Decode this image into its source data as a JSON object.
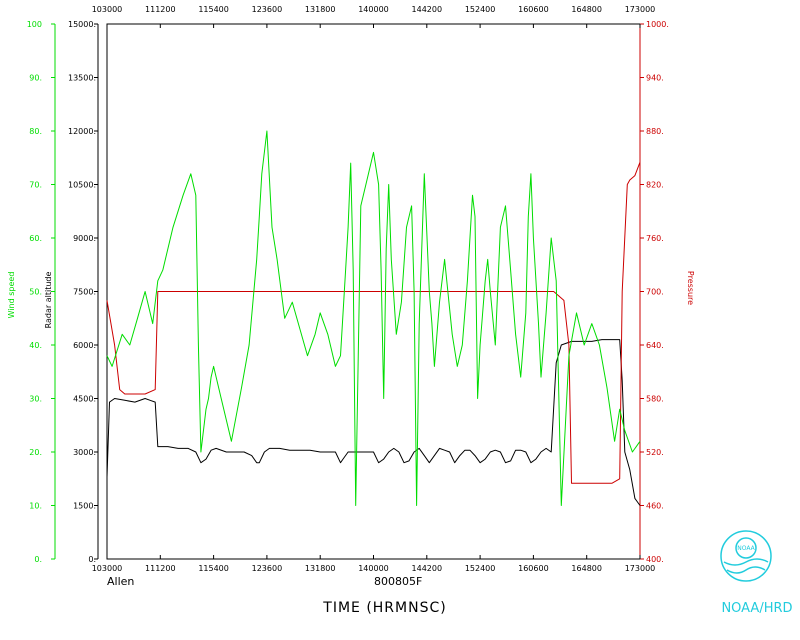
{
  "chart_data": {
    "type": "line",
    "xlabel": "TIME (HRMNSC)",
    "x_ticks": [
      "103000",
      "111200",
      "115400",
      "123600",
      "131800",
      "140000",
      "144200",
      "152400",
      "160600",
      "164800",
      "173000"
    ],
    "x_range_hrmnsc": [
      "103000",
      "173000"
    ],
    "left_outer_axis": {
      "label": "Wind speed",
      "ticks": [
        "0.",
        "10.",
        "20.",
        "30.",
        "40.",
        "50.",
        "60.",
        "70.",
        "80.",
        "90.",
        "100"
      ],
      "ylim": [
        0,
        100
      ],
      "color": "#00dd00"
    },
    "left_inner_axis": {
      "label": "Radar altitude",
      "ticks": [
        "0.",
        "1500.",
        "3000.",
        "4500.",
        "6000.",
        "7500.",
        "9000.",
        "10500.",
        "12000.",
        "13500.",
        "15000."
      ],
      "ylim": [
        0,
        15000
      ],
      "color": "#000000"
    },
    "right_axis": {
      "label": "Pressure",
      "ticks": [
        "400.",
        "460.",
        "520.",
        "580.",
        "640.",
        "700.",
        "760.",
        "820.",
        "880.",
        "940.",
        "1000."
      ],
      "ylim": [
        400,
        1000
      ],
      "color": "#cc0000"
    },
    "series": [
      {
        "name": "Wind speed",
        "axis": "left_outer",
        "color": "#00dd00",
        "x": [
          "103000",
          "103400",
          "104200",
          "104800",
          "105400",
          "110000",
          "110600",
          "111000",
          "111400",
          "112200",
          "113000",
          "113600",
          "114000",
          "114200",
          "114400",
          "114800",
          "115000",
          "115200",
          "115400",
          "120000",
          "120800",
          "121600",
          "122200",
          "122800",
          "123000",
          "123200",
          "123600",
          "124000",
          "124400",
          "125000",
          "125600",
          "130200",
          "130800",
          "131400",
          "131800",
          "132400",
          "133000",
          "133400",
          "133800",
          "134000",
          "134200",
          "134400",
          "134600",
          "135000",
          "135400",
          "140000",
          "140400",
          "140600",
          "140800",
          "141000",
          "141200",
          "141400",
          "141800",
          "142200",
          "142600",
          "143000",
          "143200",
          "143400",
          "143600",
          "144000",
          "144400",
          "144600",
          "144800",
          "145200",
          "145600",
          "150200",
          "150600",
          "151000",
          "151400",
          "151800",
          "152000",
          "152200",
          "152400",
          "152800",
          "153000",
          "153200",
          "153600",
          "154000",
          "154400",
          "154800",
          "155200",
          "155600",
          "160000",
          "160200",
          "160400",
          "160600",
          "161000",
          "161200",
          "161600",
          "162000",
          "162400",
          "162800",
          "163400",
          "164000",
          "164600",
          "165200",
          "165800",
          "170400",
          "171000",
          "171400",
          "171800",
          "172400",
          "173000"
        ],
        "y": [
          38,
          36,
          42,
          40,
          45,
          50,
          44,
          52,
          54,
          62,
          68,
          72,
          68,
          40,
          20,
          28,
          30,
          34,
          36,
          30,
          22,
          32,
          40,
          56,
          64,
          72,
          80,
          62,
          56,
          45,
          48,
          43,
          38,
          42,
          46,
          42,
          36,
          38,
          54,
          62,
          74,
          54,
          10,
          66,
          70,
          76,
          70,
          54,
          30,
          58,
          70,
          56,
          42,
          48,
          62,
          66,
          50,
          10,
          44,
          72,
          50,
          44,
          36,
          48,
          56,
          42,
          36,
          40,
          52,
          68,
          64,
          30,
          40,
          52,
          56,
          50,
          40,
          62,
          66,
          54,
          42,
          34,
          46,
          64,
          72,
          60,
          44,
          34,
          46,
          60,
          52,
          10,
          38,
          46,
          40,
          44,
          40,
          32,
          22,
          28,
          24,
          20,
          22
        ]
      },
      {
        "name": "Radar altitude",
        "axis": "left_inner",
        "color": "#000000",
        "x": [
          "103000",
          "103200",
          "103600",
          "104400",
          "105200",
          "110000",
          "110400",
          "110800",
          "111000",
          "111800",
          "112600",
          "113400",
          "114000",
          "114400",
          "114800",
          "115200",
          "115600",
          "120400",
          "121200",
          "121800",
          "122400",
          "122800",
          "123000",
          "123400",
          "123800",
          "124600",
          "125400",
          "130200",
          "131000",
          "131800",
          "132400",
          "133000",
          "133400",
          "133600",
          "134000",
          "134800",
          "135600",
          "140000",
          "140400",
          "140800",
          "141200",
          "141600",
          "142000",
          "142400",
          "142800",
          "143200",
          "143600",
          "144000",
          "144400",
          "144800",
          "145200",
          "145600",
          "150000",
          "150400",
          "150800",
          "151200",
          "151600",
          "152000",
          "152400",
          "152800",
          "153200",
          "153600",
          "154000",
          "154400",
          "154800",
          "155200",
          "155600",
          "160000",
          "160400",
          "160800",
          "161200",
          "161600",
          "162000",
          "162400",
          "162800",
          "163600",
          "164400",
          "165200",
          "170000",
          "170800",
          "171400",
          "171600",
          "171800",
          "172200",
          "172600",
          "173000"
        ],
        "y": [
          2300,
          4400,
          4500,
          4450,
          4400,
          4500,
          4450,
          4400,
          3150,
          3150,
          3100,
          3100,
          3000,
          2700,
          2800,
          3050,
          3100,
          3000,
          3000,
          3000,
          2900,
          2700,
          2700,
          3000,
          3100,
          3100,
          3050,
          3050,
          3050,
          3000,
          3000,
          3000,
          2700,
          2800,
          3000,
          3000,
          3000,
          3000,
          2700,
          2800,
          3000,
          3100,
          3000,
          2700,
          2750,
          3000,
          3100,
          2900,
          2700,
          2900,
          3100,
          3050,
          3000,
          2700,
          2900,
          3050,
          3050,
          2900,
          2700,
          2800,
          3000,
          3050,
          3000,
          2700,
          2750,
          3050,
          3050,
          3000,
          2700,
          2800,
          3000,
          3100,
          3000,
          5500,
          6000,
          6100,
          6100,
          6100,
          6150,
          6150,
          6150,
          5000,
          3000,
          2500,
          1700,
          1500
        ]
      },
      {
        "name": "Pressure",
        "axis": "right",
        "color": "#cc0000",
        "x": [
          "103000",
          "103600",
          "104000",
          "104400",
          "105200",
          "110000",
          "110800",
          "111000",
          "111200",
          "112000",
          "113000",
          "114000",
          "115000",
          "120000",
          "121000",
          "122000",
          "123000",
          "123800",
          "124600",
          "125400",
          "130200",
          "131000",
          "131800",
          "132600",
          "133400",
          "134200",
          "135000",
          "135800",
          "140600",
          "141400",
          "142200",
          "143000",
          "143800",
          "144600",
          "145400",
          "150200",
          "151000",
          "151800",
          "152600",
          "153400",
          "154200",
          "155000",
          "155800",
          "160600",
          "161400",
          "162200",
          "163000",
          "163400",
          "163600",
          "164400",
          "165200",
          "170000",
          "170800",
          "171400",
          "171600",
          "172000",
          "172200",
          "172600",
          "173000"
        ],
        "y": [
          690,
          640,
          590,
          585,
          585,
          585,
          590,
          700,
          700,
          700,
          700,
          700,
          700,
          700,
          700,
          700,
          700,
          700,
          700,
          700,
          700,
          700,
          700,
          700,
          700,
          700,
          700,
          700,
          700,
          700,
          700,
          700,
          700,
          700,
          700,
          700,
          700,
          700,
          700,
          700,
          700,
          700,
          700,
          700,
          700,
          700,
          690,
          640,
          485,
          485,
          485,
          485,
          485,
          490,
          700,
          820,
          825,
          830,
          845
        ]
      }
    ],
    "annotations": {
      "storm": "Allen",
      "flight_id": "800805F"
    },
    "grid": false
  },
  "logo": {
    "text": "NOAA/HRD",
    "emblem_text": "NOAA"
  }
}
